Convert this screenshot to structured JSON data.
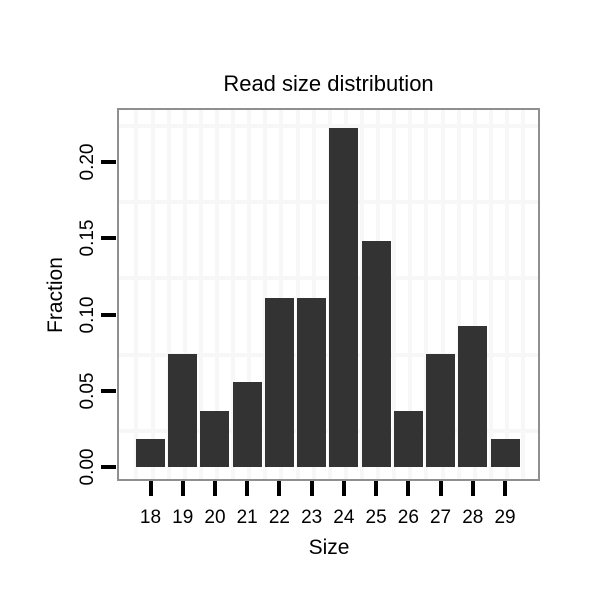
{
  "chart_data": {
    "type": "bar",
    "title": "Read size distribution",
    "xlabel": "Size",
    "ylabel": "Fraction",
    "categories": [
      "18",
      "19",
      "20",
      "21",
      "22",
      "23",
      "24",
      "25",
      "26",
      "27",
      "28",
      "29"
    ],
    "values": [
      0.0185,
      0.0741,
      0.037,
      0.0556,
      0.1111,
      0.1111,
      0.2222,
      0.1481,
      0.037,
      0.0741,
      0.0926,
      0.0185
    ],
    "ytick_labels": [
      "0.00",
      "0.05",
      "0.10",
      "0.15",
      "0.20"
    ],
    "ytick_values": [
      0.0,
      0.05,
      0.1,
      0.15,
      0.2
    ],
    "ylim": [
      -0.012,
      0.2435
    ],
    "grid": "faint minor gridlines, horizontal every 0.025 offset and vertical at bar boundaries",
    "legend_position": "none",
    "colors": {
      "bar": "#333333",
      "panel_border": "#8f8f8f",
      "gridline": "#f7f7f7",
      "tick": "#000000",
      "text": "#000000",
      "background": "#ffffff"
    }
  }
}
